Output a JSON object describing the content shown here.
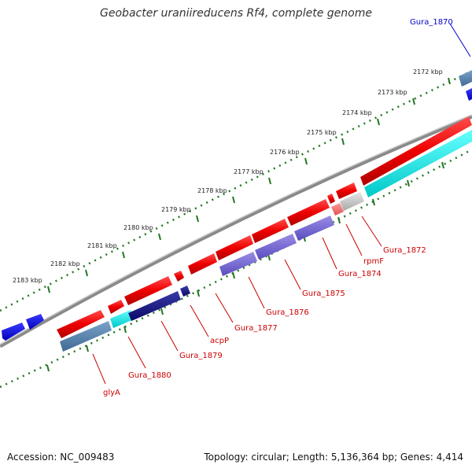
{
  "title": "Geobacter uraniireducens Rf4, complete genome",
  "footer": {
    "accession": "Accession: NC_009483",
    "topology": "Topology: circular; Length: 5,136,364 bp; Genes: 4,414"
  },
  "ticks": [
    "2172 kbp",
    "2173 kbp",
    "2174 kbp",
    "2175 kbp",
    "2176 kbp",
    "2177 kbp",
    "2178 kbp",
    "2179 kbp",
    "2180 kbp",
    "2181 kbp",
    "2182 kbp",
    "2183 kbp"
  ],
  "top_label": "Gura_1870",
  "gene_labels": [
    "Gura_1872",
    "rpmF",
    "Gura_1874",
    "Gura_1875",
    "Gura_1876",
    "Gura_1877",
    "acpP",
    "Gura_1879",
    "Gura_1880",
    "glyA"
  ],
  "colors": {
    "label_red": "#cc0000",
    "label_blue": "#0000cc",
    "tick_green": "#227722",
    "backbone": "#777777"
  }
}
